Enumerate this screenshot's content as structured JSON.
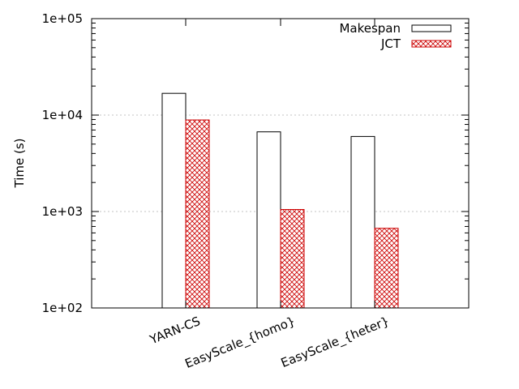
{
  "chart_data": {
    "type": "bar",
    "title": "",
    "xlabel": "",
    "ylabel": "Time (s)",
    "yscale": "log",
    "ylim": [
      100,
      100000
    ],
    "yticks": [
      {
        "value": 100,
        "label": "1e+02"
      },
      {
        "value": 1000,
        "label": "1e+03"
      },
      {
        "value": 10000,
        "label": "1e+04"
      },
      {
        "value": 100000,
        "label": "1e+05"
      }
    ],
    "grid": "horizontal dotted at major ticks",
    "legend_position": "top-right",
    "categories": [
      "YARN-CS",
      "EasyScale_{homo}",
      "EasyScale_{heter}"
    ],
    "series": [
      {
        "name": "Makespan",
        "style": "hollow",
        "color": "#000000",
        "values": [
          16800,
          6700,
          6000
        ]
      },
      {
        "name": "JCT",
        "style": "crosshatch",
        "color": "#cc0000",
        "values": [
          8900,
          1050,
          670
        ]
      }
    ]
  }
}
